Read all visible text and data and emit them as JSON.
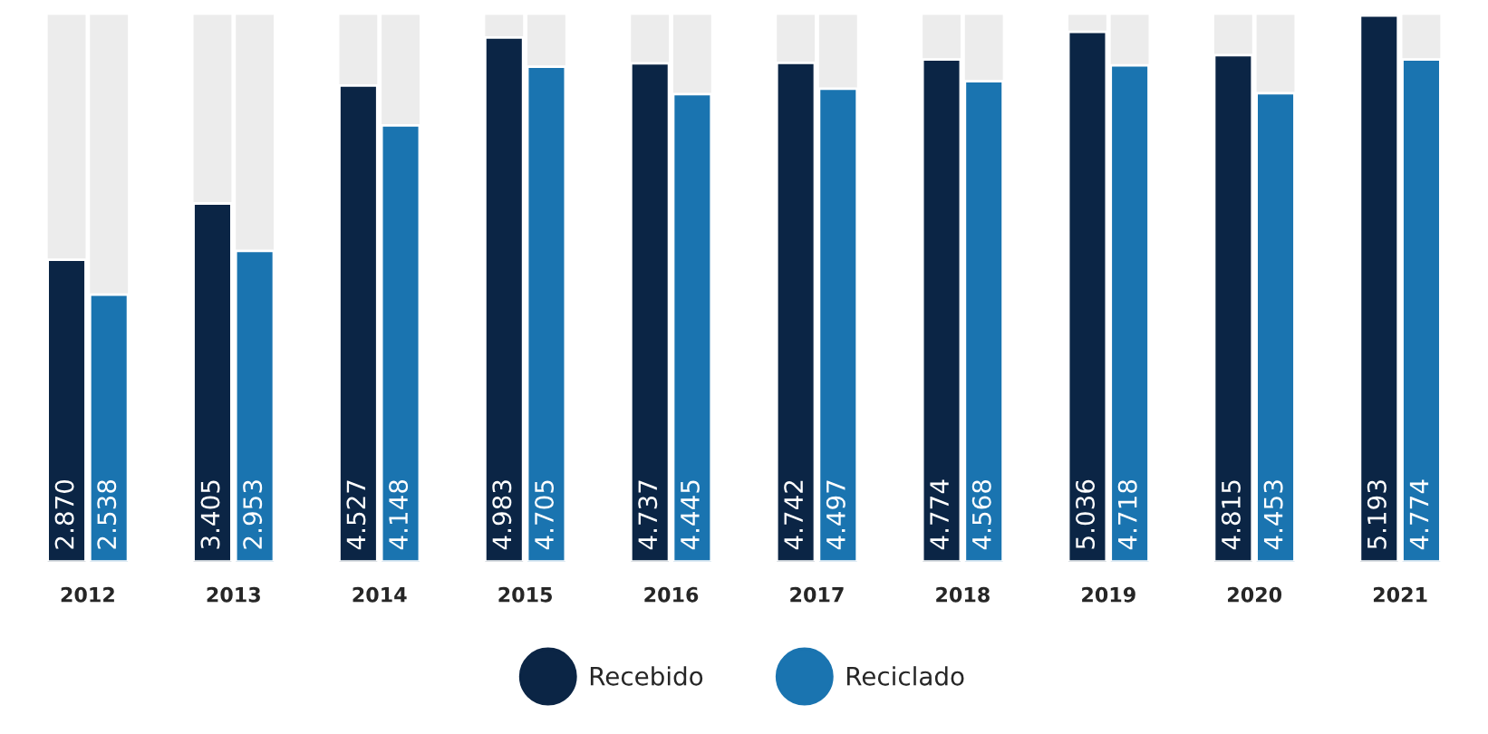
{
  "chart_data": {
    "type": "bar",
    "categories": [
      "2012",
      "2013",
      "2014",
      "2015",
      "2016",
      "2017",
      "2018",
      "2019",
      "2020",
      "2021"
    ],
    "series": [
      {
        "name": "Recebido",
        "color": "#0b2545",
        "values": [
          2870,
          3405,
          4527,
          4983,
          4737,
          4742,
          4774,
          5036,
          4815,
          5193
        ],
        "value_labels": [
          "2.870",
          "3.405",
          "4.527",
          "4.983",
          "4.737",
          "4.742",
          "4.774",
          "5.036",
          "4.815",
          "5.193"
        ]
      },
      {
        "name": "Reciclado",
        "color": "#1a74b0",
        "values": [
          2538,
          2953,
          4148,
          4705,
          4445,
          4497,
          4568,
          4718,
          4453,
          4774
        ],
        "value_labels": [
          "2.538",
          "2.953",
          "4.148",
          "4.705",
          "4.445",
          "4.497",
          "4.568",
          "4.718",
          "4.453",
          "4.774"
        ]
      }
    ],
    "ylim": [
      0,
      5200
    ],
    "tick_labels": "x",
    "legend": "bottom",
    "grid": false
  }
}
